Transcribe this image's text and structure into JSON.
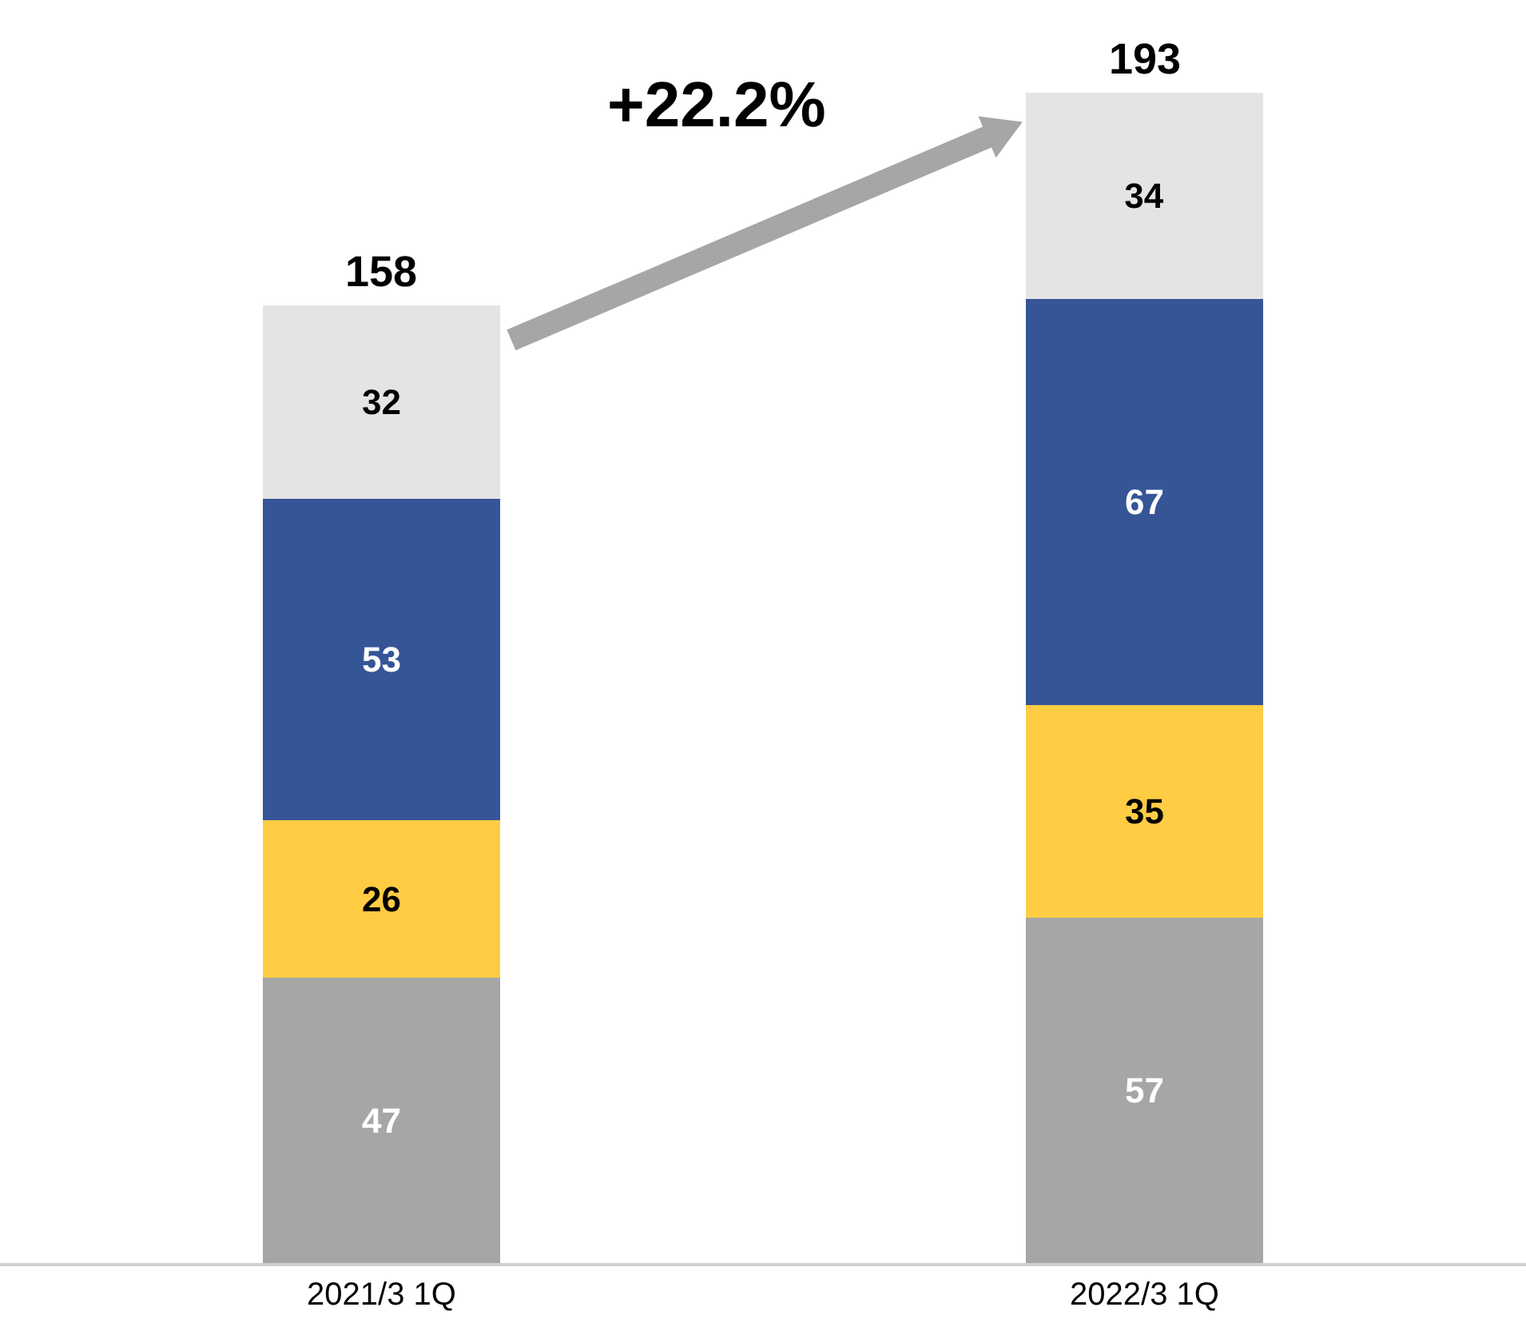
{
  "chart_data": {
    "type": "bar",
    "stacked": true,
    "categories": [
      "2021/3 1Q",
      "2022/3 1Q"
    ],
    "series": [
      {
        "color": "#a6a6a6",
        "values": [
          47,
          57
        ]
      },
      {
        "color": "#ffcc44",
        "values": [
          26,
          35
        ]
      },
      {
        "color": "#355597",
        "values": [
          53,
          67
        ]
      },
      {
        "color": "#e4e4e4",
        "values": [
          32,
          34
        ]
      }
    ],
    "data_labels": true,
    "totals": [
      "158",
      "193"
    ],
    "annotations": [
      "+22.2%"
    ],
    "grid": false
  }
}
